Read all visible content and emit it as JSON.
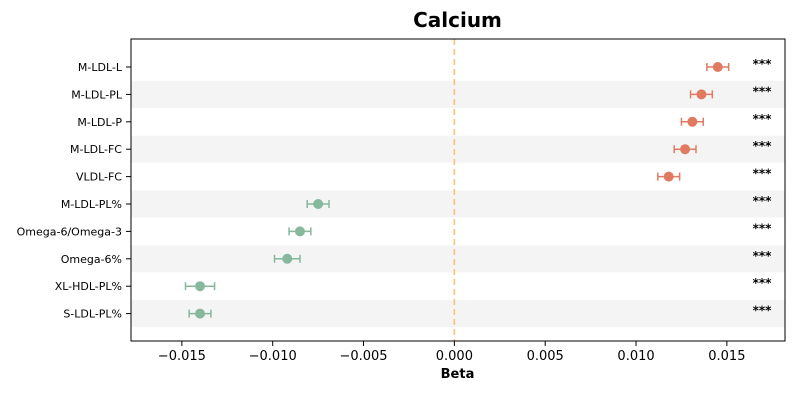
{
  "chart_data": {
    "type": "scatter",
    "title": "Calcium",
    "xlabel": "Beta",
    "ylabel": "",
    "xlim": [
      -0.0178,
      0.0182
    ],
    "xticks": [
      -0.015,
      -0.01,
      -0.005,
      0.0,
      0.005,
      0.01,
      0.015
    ],
    "xtick_labels": [
      "−0.015",
      "−0.010",
      "−0.005",
      "0.000",
      "0.005",
      "0.010",
      "0.015"
    ],
    "reference_line_x": 0,
    "grid": false,
    "alternating_row_bands": true,
    "categories": [
      "M-LDL-L",
      "M-LDL-PL",
      "M-LDL-P",
      "M-LDL-FC",
      "VLDL-FC",
      "M-LDL-PL%",
      "Omega-6/Omega-3",
      "Omega-6%",
      "XL-HDL-PL%",
      "S-LDL-PL%"
    ],
    "beta": [
      0.0145,
      0.0136,
      0.0131,
      0.0127,
      0.0118,
      -0.0075,
      -0.0085,
      -0.0092,
      -0.014,
      -0.014
    ],
    "ci_lower": [
      0.0139,
      0.013,
      0.0125,
      0.0121,
      0.0112,
      -0.0081,
      -0.0091,
      -0.0099,
      -0.0148,
      -0.0146
    ],
    "ci_upper": [
      0.0151,
      0.0142,
      0.0137,
      0.0133,
      0.0124,
      -0.0069,
      -0.0079,
      -0.0085,
      -0.0132,
      -0.0134
    ],
    "significance": [
      "***",
      "***",
      "***",
      "***",
      "***",
      "***",
      "***",
      "***",
      "***",
      "***"
    ],
    "colors": {
      "positive": "#e07b62",
      "negative": "#86b89d",
      "reference_line": "#f5c37a",
      "band": "#f4f4f4",
      "axis": "#000000"
    }
  }
}
